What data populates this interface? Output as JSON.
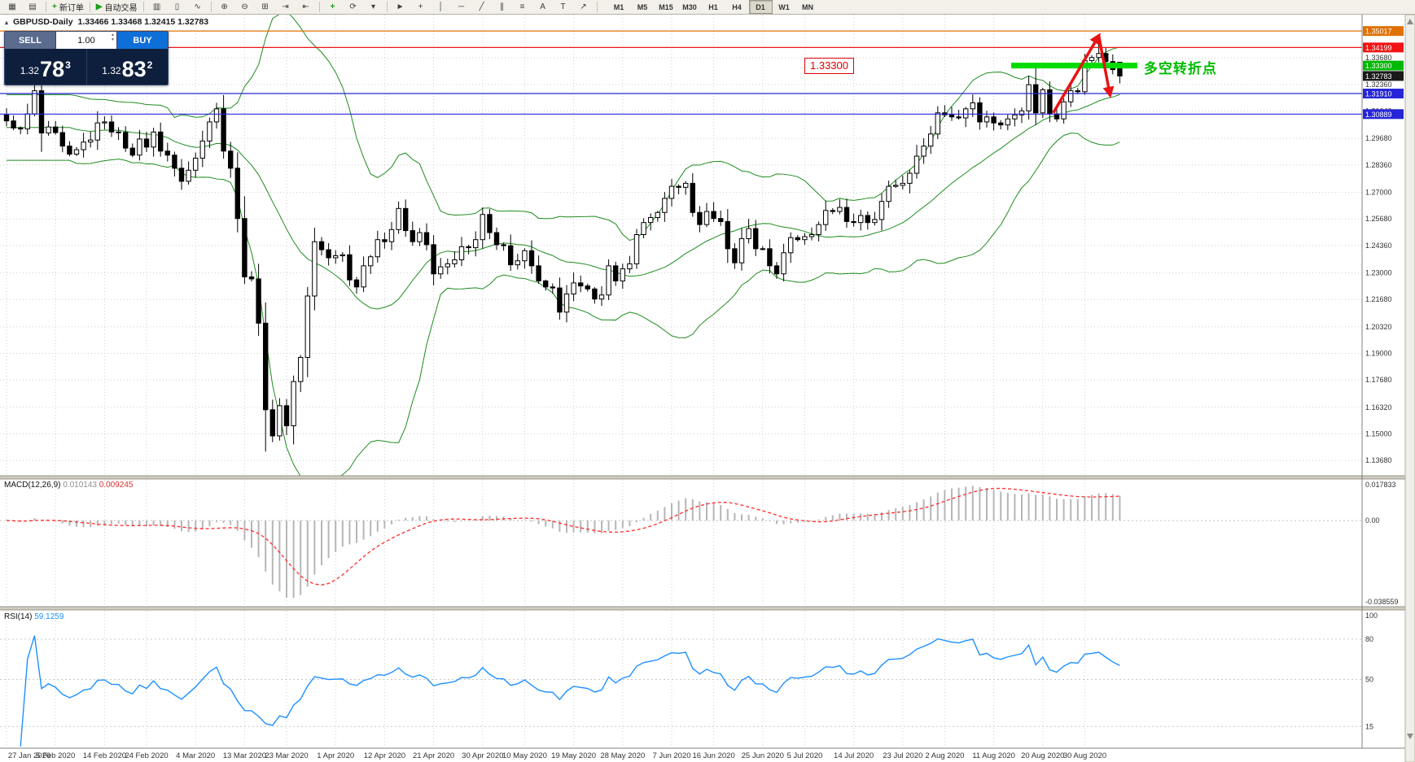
{
  "toolbar": {
    "items": [
      {
        "type": "icon",
        "name": "new-chart-icon",
        "glyph": "▦"
      },
      {
        "type": "icon",
        "name": "chart-profiles-icon",
        "glyph": "▤"
      },
      {
        "type": "sep"
      },
      {
        "type": "labeled",
        "name": "new-order-button",
        "glyph": "+",
        "glyph_color": "#1a9c1a",
        "label": "新订单"
      },
      {
        "type": "sep"
      },
      {
        "type": "labeled",
        "name": "autotrading-button",
        "glyph": "▶",
        "glyph_color": "#18a018",
        "label": "自动交易"
      },
      {
        "type": "sep"
      },
      {
        "type": "icon",
        "name": "bar-chart-icon",
        "glyph": "▥"
      },
      {
        "type": "icon",
        "name": "candlestick-chart-icon",
        "glyph": "▯"
      },
      {
        "type": "icon",
        "name": "line-chart-icon",
        "glyph": "∿"
      },
      {
        "type": "sep"
      },
      {
        "type": "icon",
        "name": "zoom-in-icon",
        "glyph": "⊕"
      },
      {
        "type": "icon",
        "name": "zoom-out-icon",
        "glyph": "⊖"
      },
      {
        "type": "icon",
        "name": "tile-windows-icon",
        "glyph": "⊞"
      },
      {
        "type": "icon",
        "name": "auto-scroll-icon",
        "glyph": "⇥"
      },
      {
        "type": "icon",
        "name": "chart-shift-icon",
        "glyph": "⇤"
      },
      {
        "type": "sep"
      },
      {
        "type": "icon",
        "name": "indicators-icon",
        "glyph": "+",
        "glyph_color": "#1a9c1a"
      },
      {
        "type": "icon",
        "name": "periods-icon",
        "glyph": "⟳"
      },
      {
        "type": "icon",
        "name": "templates-icon",
        "glyph": "▾"
      },
      {
        "type": "sep"
      },
      {
        "type": "icon",
        "name": "cursor-icon",
        "glyph": "►"
      },
      {
        "type": "icon",
        "name": "crosshair-icon",
        "glyph": "+"
      },
      {
        "type": "icon",
        "name": "vertical-line-icon",
        "glyph": "│"
      },
      {
        "type": "icon",
        "name": "horizontal-line-icon",
        "glyph": "─"
      },
      {
        "type": "icon",
        "name": "trendline-icon",
        "glyph": "╱"
      },
      {
        "type": "icon",
        "name": "channel-icon",
        "glyph": "∥"
      },
      {
        "type": "icon",
        "name": "fibonacci-icon",
        "glyph": "≡"
      },
      {
        "type": "icon",
        "name": "text-icon",
        "glyph": "A"
      },
      {
        "type": "icon",
        "name": "label-icon",
        "glyph": "T"
      },
      {
        "type": "icon",
        "name": "arrows-icon",
        "glyph": "↗"
      },
      {
        "type": "sep"
      }
    ],
    "timeframes": [
      "M1",
      "M5",
      "M15",
      "M30",
      "H1",
      "H4",
      "D1",
      "W1",
      "MN"
    ],
    "active_timeframe": "D1"
  },
  "chart_header": {
    "symbol": "GBPUSD-Daily",
    "ohlc": "1.33466 1.33468 1.32415 1.32783"
  },
  "trade_panel": {
    "sell_label": "SELL",
    "buy_label": "BUY",
    "volume": "1.00",
    "sell_price_small": "1.32",
    "sell_price_big": "78",
    "sell_price_sup": "3",
    "buy_price_small": "1.32",
    "buy_price_big": "83",
    "buy_price_sup": "2"
  },
  "indicators": {
    "macd_name": "MACD(12,26,9)",
    "macd_main": "0.010143",
    "macd_signal": "0.009245",
    "rsi_name": "RSI(14)",
    "rsi_value": "59.1259"
  },
  "annotations": {
    "price_label": {
      "text": "1.33300",
      "price": 1.333
    },
    "note": {
      "text": "多空转折点",
      "color": "#00bb00"
    },
    "green_zone": {
      "price": 1.333,
      "from_index": 143.5,
      "to_index": 161.5,
      "color": "#00dc00"
    },
    "arrow": {
      "color": "#e81313",
      "up_segment": [
        [
          149.5,
          1.3095
        ],
        [
          156.0,
          1.3478
        ]
      ],
      "down_segment": [
        [
          156.0,
          1.3478
        ],
        [
          157.6,
          1.3185
        ]
      ]
    }
  },
  "price_axis": {
    "ticks": [
      "1.33680",
      "1.32360",
      "1.31040",
      "1.29680",
      "1.28360",
      "1.27000",
      "1.25680",
      "1.24360",
      "1.23000",
      "1.21680",
      "1.20320",
      "1.19000",
      "1.17680",
      "1.16320",
      "1.15000",
      "1.13680"
    ],
    "badges": [
      {
        "price": 1.35017,
        "text": "1.35017",
        "bg": "#e07000"
      },
      {
        "price": 1.34199,
        "text": "1.34199",
        "bg": "#f01414"
      },
      {
        "price": 1.333,
        "text": "1.33300",
        "bg": "#00b800"
      },
      {
        "price": 1.32783,
        "text": "1.32783",
        "bg": "#1a1a1a"
      },
      {
        "price": 1.3191,
        "text": "1.31910",
        "bg": "#2626d8"
      },
      {
        "price": 1.30889,
        "text": "1.30889",
        "bg": "#2626d8"
      }
    ],
    "macd_ticks": [
      "0.017833",
      "0.00",
      "-0.038559"
    ],
    "rsi_ticks": [
      "100",
      "80",
      "50",
      "15"
    ]
  },
  "chart_data": {
    "type": "candlestick",
    "symbol": "GBPUSD",
    "timeframe": "Daily",
    "price_scale": {
      "top": 1.3575,
      "bottom": 1.13
    },
    "closes": [
      1.3055,
      1.302,
      1.3015,
      1.309,
      1.3205,
      1.2995,
      1.3025,
      1.2997,
      1.293,
      1.289,
      1.2912,
      1.295,
      1.296,
      1.3045,
      1.305,
      1.3,
      1.2998,
      1.292,
      1.2885,
      1.2965,
      1.2925,
      1.3,
      1.2905,
      1.2885,
      1.282,
      1.2755,
      1.281,
      1.287,
      1.2955,
      1.305,
      1.3115,
      1.2905,
      1.282,
      1.257,
      1.228,
      1.227,
      1.205,
      1.162,
      1.149,
      1.164,
      1.154,
      1.176,
      1.188,
      1.2185,
      1.2455,
      1.2415,
      1.2375,
      1.2385,
      1.239,
      1.2265,
      1.223,
      1.2335,
      1.238,
      1.2465,
      1.2455,
      1.2515,
      1.262,
      1.251,
      1.2455,
      1.25,
      1.244,
      1.2295,
      1.233,
      1.2345,
      1.2365,
      1.243,
      1.2425,
      1.2465,
      1.259,
      1.25,
      1.244,
      1.2435,
      1.234,
      1.236,
      1.241,
      1.2335,
      1.226,
      1.223,
      1.2225,
      1.2105,
      1.2195,
      1.225,
      1.2235,
      1.222,
      1.217,
      1.219,
      1.2335,
      1.226,
      1.232,
      1.2345,
      1.249,
      1.255,
      1.2575,
      1.26,
      1.267,
      1.273,
      1.2725,
      1.2745,
      1.26,
      1.254,
      1.2605,
      1.257,
      1.2555,
      1.242,
      1.235,
      1.247,
      1.252,
      1.242,
      1.242,
      1.2335,
      1.2295,
      1.24,
      1.2475,
      1.2465,
      1.248,
      1.249,
      1.254,
      1.261,
      1.2605,
      1.2625,
      1.2555,
      1.255,
      1.2585,
      1.255,
      1.2565,
      1.2655,
      1.273,
      1.2735,
      1.2745,
      1.2795,
      1.288,
      1.293,
      1.299,
      1.3095,
      1.3085,
      1.3075,
      1.307,
      1.3115,
      1.3145,
      1.305,
      1.3075,
      1.3045,
      1.3035,
      1.3065,
      1.3085,
      1.3105,
      1.3235,
      1.3095,
      1.321,
      1.309,
      1.3065,
      1.315,
      1.3205,
      1.32,
      1.3355,
      1.337,
      1.339,
      1.335,
      1.331,
      1.3278
    ],
    "overrides": {
      "37": {
        "l": 1.1412
      },
      "156": {
        "h": 1.348
      }
    },
    "last_bar": {
      "o": 1.33466,
      "h": 1.33468,
      "l": 1.32415,
      "c": 1.32783
    },
    "levels": [
      {
        "price": 1.35017,
        "color": "#e07000"
      },
      {
        "price": 1.34199,
        "color": "#f01414"
      },
      {
        "price": 1.3191,
        "color": "#2626d8"
      },
      {
        "price": 1.30889,
        "color": "#2626d8"
      }
    ],
    "bollinger": {
      "period": 20,
      "deviation": 2,
      "color": "#1e8c1e"
    },
    "macd": {
      "fast": 12,
      "slow": 26,
      "signal": 9,
      "scale_max": 0.017833,
      "scale_min": -0.038559,
      "hist_color": "#b6b6b6",
      "signal_color": "#ff2a2a"
    },
    "rsi": {
      "period": 14,
      "levels": [
        80,
        50,
        15
      ],
      "color": "#1e90ff"
    },
    "x_ticks": [
      {
        "label": "27 Jan 2020",
        "i": 0
      },
      {
        "label": "5 Feb 2020",
        "i": 7
      },
      {
        "label": "14 Feb 2020",
        "i": 14
      },
      {
        "label": "24 Feb 2020",
        "i": 20
      },
      {
        "label": "4 Mar 2020",
        "i": 27
      },
      {
        "label": "13 Mar 2020",
        "i": 34
      },
      {
        "label": "23 Mar 2020",
        "i": 40
      },
      {
        "label": "1 Apr 2020",
        "i": 47
      },
      {
        "label": "12 Apr 2020",
        "i": 54
      },
      {
        "label": "21 Apr 2020",
        "i": 61
      },
      {
        "label": "30 Apr 2020",
        "i": 68
      },
      {
        "label": "10 May 2020",
        "i": 74
      },
      {
        "label": "19 May 2020",
        "i": 81
      },
      {
        "label": "28 May 2020",
        "i": 88
      },
      {
        "label": "7 Jun 2020",
        "i": 95
      },
      {
        "label": "16 Jun 2020",
        "i": 101
      },
      {
        "label": "25 Jun 2020",
        "i": 108
      },
      {
        "label": "5 Jul 2020",
        "i": 114
      },
      {
        "label": "14 Jul 2020",
        "i": 121
      },
      {
        "label": "23 Jul 2020",
        "i": 128
      },
      {
        "label": "2 Aug 2020",
        "i": 134
      },
      {
        "label": "11 Aug 2020",
        "i": 141
      },
      {
        "label": "20 Aug 2020",
        "i": 148
      },
      {
        "label": "30 Aug 2020",
        "i": 154
      }
    ]
  },
  "colors": {
    "grid": "#cfcfcf",
    "bull": "#ffffff",
    "bear": "#000000",
    "candle_outline": "#000000",
    "pane_separator": "#cfccc2",
    "axis_border": "#808080"
  }
}
